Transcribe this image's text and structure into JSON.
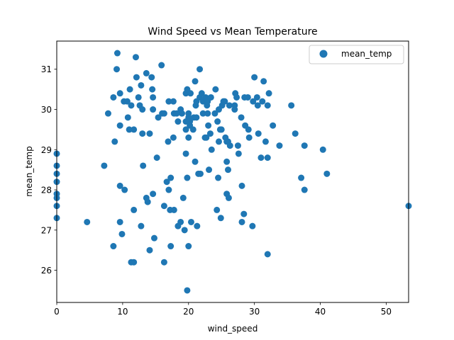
{
  "chart_data": {
    "type": "scatter",
    "title": "Wind Speed vs Mean Temperature",
    "xlabel": "wind_speed",
    "ylabel": "mean_temp",
    "xlim": [
      0,
      53.4
    ],
    "ylim": [
      25.2,
      31.7
    ],
    "xticks": [
      0,
      10,
      20,
      30,
      40,
      50
    ],
    "yticks": [
      26,
      27,
      28,
      29,
      30,
      31
    ],
    "grid": false,
    "legend": {
      "position": "top-right",
      "entries": [
        "mean_temp"
      ]
    },
    "series": [
      {
        "name": "mean_temp",
        "color": "#1f77b4",
        "points": [
          [
            0,
            28.9
          ],
          [
            0,
            28.6
          ],
          [
            0,
            28.4
          ],
          [
            0,
            28.2
          ],
          [
            0,
            27.9
          ],
          [
            0,
            27.8
          ],
          [
            0,
            27.6
          ],
          [
            0,
            27.3
          ],
          [
            4.6,
            27.2
          ],
          [
            7.2,
            28.6
          ],
          [
            7.8,
            29.9
          ],
          [
            8.6,
            30.3
          ],
          [
            8.8,
            29.2
          ],
          [
            9.1,
            31.0
          ],
          [
            9.2,
            31.4
          ],
          [
            8.6,
            26.6
          ],
          [
            9.6,
            30.4
          ],
          [
            9.6,
            29.6
          ],
          [
            9.6,
            28.1
          ],
          [
            9.6,
            27.2
          ],
          [
            9.9,
            26.9
          ],
          [
            10.2,
            30.2
          ],
          [
            10.3,
            28.0
          ],
          [
            10.7,
            30.2
          ],
          [
            10.8,
            29.8
          ],
          [
            11.0,
            29.5
          ],
          [
            11.1,
            30.5
          ],
          [
            11.3,
            30.1
          ],
          [
            11.3,
            26.2
          ],
          [
            11.7,
            26.2
          ],
          [
            11.7,
            29.5
          ],
          [
            11.7,
            27.5
          ],
          [
            12.0,
            31.3
          ],
          [
            12.1,
            30.8
          ],
          [
            12.4,
            30.3
          ],
          [
            12.6,
            30.1
          ],
          [
            12.8,
            30.6
          ],
          [
            12.8,
            27.1
          ],
          [
            13.0,
            30.0
          ],
          [
            13.0,
            29.4
          ],
          [
            13.1,
            28.6
          ],
          [
            13.6,
            30.9
          ],
          [
            13.6,
            27.8
          ],
          [
            13.8,
            27.7
          ],
          [
            14.1,
            29.4
          ],
          [
            14.1,
            26.5
          ],
          [
            14.4,
            30.8
          ],
          [
            14.5,
            30.5
          ],
          [
            14.6,
            30.0
          ],
          [
            14.6,
            30.3
          ],
          [
            14.6,
            27.9
          ],
          [
            14.8,
            26.8
          ],
          [
            15.2,
            28.8
          ],
          [
            15.4,
            29.8
          ],
          [
            15.9,
            31.1
          ],
          [
            16.0,
            29.9
          ],
          [
            16.3,
            29.9
          ],
          [
            16.3,
            27.6
          ],
          [
            16.3,
            26.2
          ],
          [
            16.7,
            28.2
          ],
          [
            16.9,
            29.2
          ],
          [
            17.0,
            30.2
          ],
          [
            17.0,
            28.0
          ],
          [
            17.2,
            27.5
          ],
          [
            17.3,
            28.3
          ],
          [
            17.3,
            26.6
          ],
          [
            17.7,
            30.2
          ],
          [
            17.7,
            29.3
          ],
          [
            17.8,
            27.5
          ],
          [
            17.8,
            29.9
          ],
          [
            18.2,
            29.9
          ],
          [
            18.4,
            29.7
          ],
          [
            18.4,
            27.1
          ],
          [
            18.8,
            30.0
          ],
          [
            18.8,
            27.2
          ],
          [
            19.0,
            29.9
          ],
          [
            19.2,
            27.8
          ],
          [
            19.4,
            27.0
          ],
          [
            19.6,
            30.4
          ],
          [
            19.6,
            29.7
          ],
          [
            19.6,
            29.5
          ],
          [
            19.6,
            28.9
          ],
          [
            19.8,
            30.5
          ],
          [
            19.8,
            28.3
          ],
          [
            19.8,
            25.5
          ],
          [
            20.0,
            29.9
          ],
          [
            20.0,
            29.8
          ],
          [
            20.0,
            29.3
          ],
          [
            20.0,
            26.6
          ],
          [
            20.2,
            29.6
          ],
          [
            20.2,
            29.7
          ],
          [
            20.3,
            30.4
          ],
          [
            20.4,
            27.2
          ],
          [
            20.7,
            29.5
          ],
          [
            20.8,
            29.8
          ],
          [
            21.0,
            30.7
          ],
          [
            21.0,
            28.7
          ],
          [
            21.1,
            30.1
          ],
          [
            21.2,
            30.2
          ],
          [
            21.2,
            29.8
          ],
          [
            21.3,
            27.1
          ],
          [
            21.5,
            28.4
          ],
          [
            21.7,
            31.0
          ],
          [
            21.7,
            30.3
          ],
          [
            21.8,
            28.4
          ],
          [
            22.0,
            30.4
          ],
          [
            22.2,
            30.2
          ],
          [
            22.2,
            29.9
          ],
          [
            22.5,
            29.3
          ],
          [
            22.6,
            30.3
          ],
          [
            22.7,
            29.3
          ],
          [
            22.8,
            30.1
          ],
          [
            22.9,
            30.2
          ],
          [
            22.9,
            29.9
          ],
          [
            23.0,
            29.6
          ],
          [
            23.1,
            28.5
          ],
          [
            23.3,
            29.4
          ],
          [
            23.4,
            30.3
          ],
          [
            23.5,
            29.0
          ],
          [
            24.0,
            29.9
          ],
          [
            24.1,
            30.5
          ],
          [
            24.3,
            27.5
          ],
          [
            24.4,
            29.7
          ],
          [
            24.5,
            28.3
          ],
          [
            24.6,
            29.2
          ],
          [
            24.6,
            30.0
          ],
          [
            24.8,
            29.5
          ],
          [
            24.9,
            27.3
          ],
          [
            25.0,
            29.5
          ],
          [
            25.1,
            30.1
          ],
          [
            25.3,
            30.2
          ],
          [
            25.5,
            30.2
          ],
          [
            25.6,
            29.3
          ],
          [
            25.8,
            29.2
          ],
          [
            25.8,
            28.7
          ],
          [
            25.8,
            27.9
          ],
          [
            26.0,
            28.5
          ],
          [
            26.0,
            29.2
          ],
          [
            26.1,
            27.8
          ],
          [
            26.2,
            30.1
          ],
          [
            26.3,
            29.1
          ],
          [
            27.0,
            30.0
          ],
          [
            27.0,
            30.1
          ],
          [
            27.1,
            30.4
          ],
          [
            27.3,
            30.3
          ],
          [
            27.5,
            29.1
          ],
          [
            27.6,
            28.9
          ],
          [
            28.0,
            29.8
          ],
          [
            28.1,
            28.1
          ],
          [
            28.1,
            27.2
          ],
          [
            28.4,
            27.4
          ],
          [
            28.5,
            30.3
          ],
          [
            28.6,
            29.6
          ],
          [
            29.0,
            30.3
          ],
          [
            29.1,
            29.5
          ],
          [
            29.2,
            29.3
          ],
          [
            29.7,
            27.1
          ],
          [
            29.8,
            30.2
          ],
          [
            30.0,
            30.8
          ],
          [
            30.4,
            30.3
          ],
          [
            30.5,
            30.1
          ],
          [
            30.6,
            29.4
          ],
          [
            31.0,
            28.8
          ],
          [
            31.2,
            30.2
          ],
          [
            31.4,
            30.7
          ],
          [
            31.7,
            29.2
          ],
          [
            32.0,
            30.1
          ],
          [
            32.0,
            28.8
          ],
          [
            32.0,
            26.4
          ],
          [
            32.2,
            30.4
          ],
          [
            32.8,
            29.6
          ],
          [
            33.8,
            29.1
          ],
          [
            35.6,
            30.1
          ],
          [
            36.2,
            29.4
          ],
          [
            37.1,
            28.3
          ],
          [
            37.6,
            29.1
          ],
          [
            37.6,
            28.0
          ],
          [
            40.4,
            29.0
          ],
          [
            41.0,
            28.4
          ],
          [
            53.4,
            27.6
          ]
        ]
      }
    ]
  }
}
